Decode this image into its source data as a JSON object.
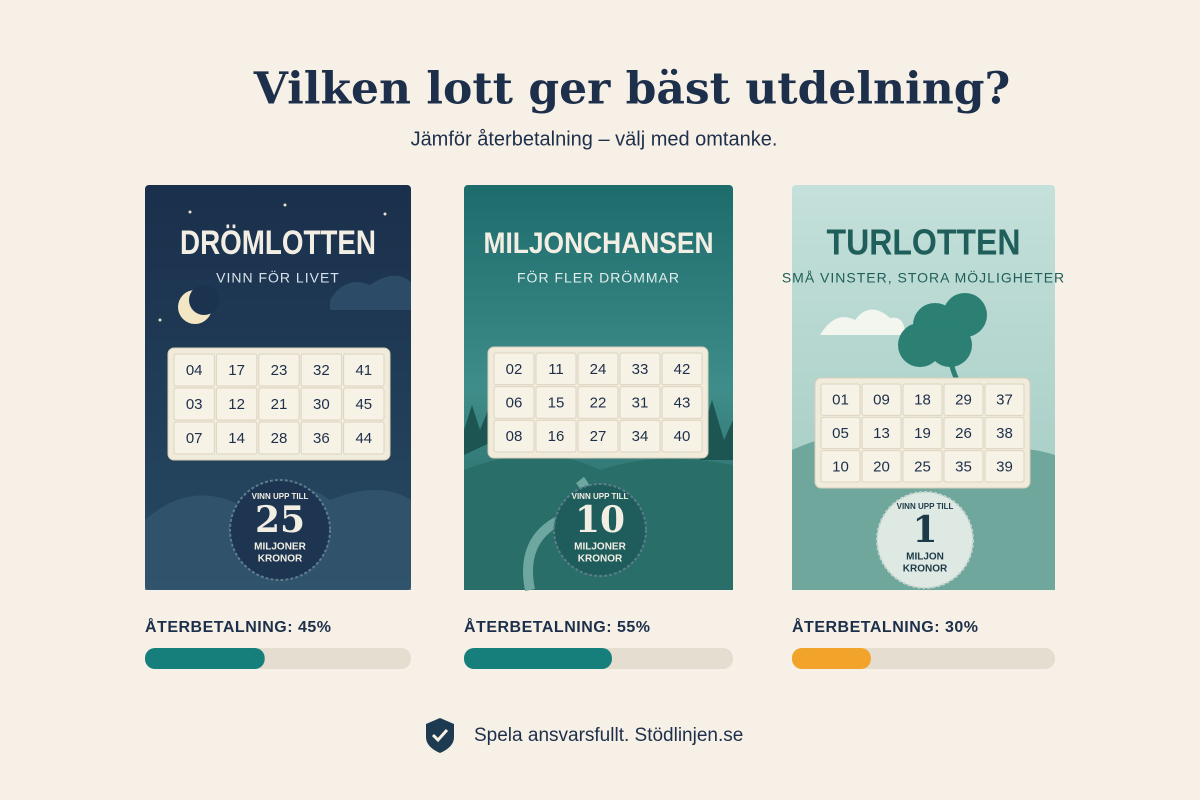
{
  "header": {
    "title": "Vilken lott ger bäst utdelning?",
    "subtitle": "Jämför återbetalning – välj med omtanke."
  },
  "return_scale": [
    0,
    100
  ],
  "cards": [
    {
      "name": "DRÖMLOTTEN",
      "tagline": "VINN FÖR LIVET",
      "numbers": [
        [
          "04",
          "17",
          "23",
          "32",
          "41"
        ],
        [
          "03",
          "12",
          "21",
          "30",
          "45"
        ],
        [
          "07",
          "14",
          "28",
          "36",
          "44"
        ]
      ],
      "badge": {
        "top": "VINN UPP TILL",
        "amount": 25,
        "unit": [
          "MILJONER",
          "KRONOR"
        ]
      },
      "return_label": "ÅTERBETALNING: 45%",
      "return_value": 45,
      "bar_color": "#167f7b"
    },
    {
      "name": "MILJONCHANSEN",
      "tagline": "FÖR FLER DRÖMMAR",
      "numbers": [
        [
          "02",
          "11",
          "24",
          "33",
          "42"
        ],
        [
          "06",
          "15",
          "22",
          "31",
          "43"
        ],
        [
          "08",
          "16",
          "27",
          "34",
          "40"
        ]
      ],
      "badge": {
        "top": "VINN UPP TILL",
        "amount": 10,
        "unit": [
          "MILJONER",
          "KRONOR"
        ]
      },
      "return_label": "ÅTERBETALNING: 55%",
      "return_value": 55,
      "bar_color": "#167f7b"
    },
    {
      "name": "TURLOTTEN",
      "tagline": "SMÅ VINSTER, STORA MÖJLIGHETER",
      "numbers": [
        [
          "01",
          "09",
          "18",
          "29",
          "37"
        ],
        [
          "05",
          "13",
          "19",
          "26",
          "38"
        ],
        [
          "10",
          "20",
          "25",
          "35",
          "39"
        ]
      ],
      "badge": {
        "top": "VINN UPP TILL",
        "amount": 1,
        "unit": [
          "MILJON",
          "KRONOR"
        ]
      },
      "return_label": "ÅTERBETALNING: 30%",
      "return_value": 30,
      "bar_color": "#f2a42a"
    }
  ],
  "footer": "Spela ansvarsfullt. Stödlinjen.se"
}
